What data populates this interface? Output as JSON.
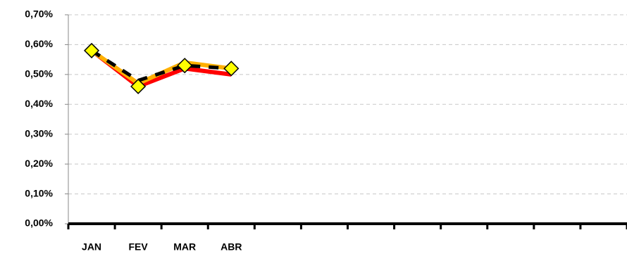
{
  "chart_data": {
    "type": "line",
    "categories": [
      "JAN",
      "FEV",
      "MAR",
      "ABR",
      null,
      null,
      null,
      null,
      null,
      null,
      null,
      null
    ],
    "series": [
      {
        "color": "#ff0000",
        "linestyle": "solid",
        "values": [
          0.58,
          0.46,
          0.52,
          0.5,
          null,
          null,
          null,
          null,
          null,
          null,
          null,
          null
        ]
      },
      {
        "color": "#ffb000",
        "linestyle": "solid",
        "values": [
          0.58,
          0.47,
          0.54,
          0.52,
          null,
          null,
          null,
          null,
          null,
          null,
          null,
          null
        ]
      },
      {
        "color": "#000000",
        "linestyle": "dashed",
        "values": [
          0.58,
          0.48,
          0.53,
          0.52,
          null,
          null,
          null,
          null,
          null,
          null,
          null,
          null
        ]
      },
      {
        "color": "#ffff00",
        "linestyle": "none",
        "marker": "diamond",
        "values": [
          0.58,
          0.46,
          0.53,
          0.52,
          null,
          null,
          null,
          null,
          null,
          null,
          null,
          null
        ]
      }
    ],
    "ylim": [
      0,
      0.7
    ],
    "yticks": [
      {
        "value": 0,
        "label": "0,00%"
      },
      {
        "value": 0.1,
        "label": "0,10%"
      },
      {
        "value": 0.2,
        "label": "0,20%"
      },
      {
        "value": 0.3,
        "label": "0,30%"
      },
      {
        "value": 0.4,
        "label": "0,40%"
      },
      {
        "value": 0.5,
        "label": "0,50%"
      },
      {
        "value": 0.6,
        "label": "0,60%"
      },
      {
        "value": 0.7,
        "label": "0,70%"
      }
    ],
    "grid": true
  }
}
